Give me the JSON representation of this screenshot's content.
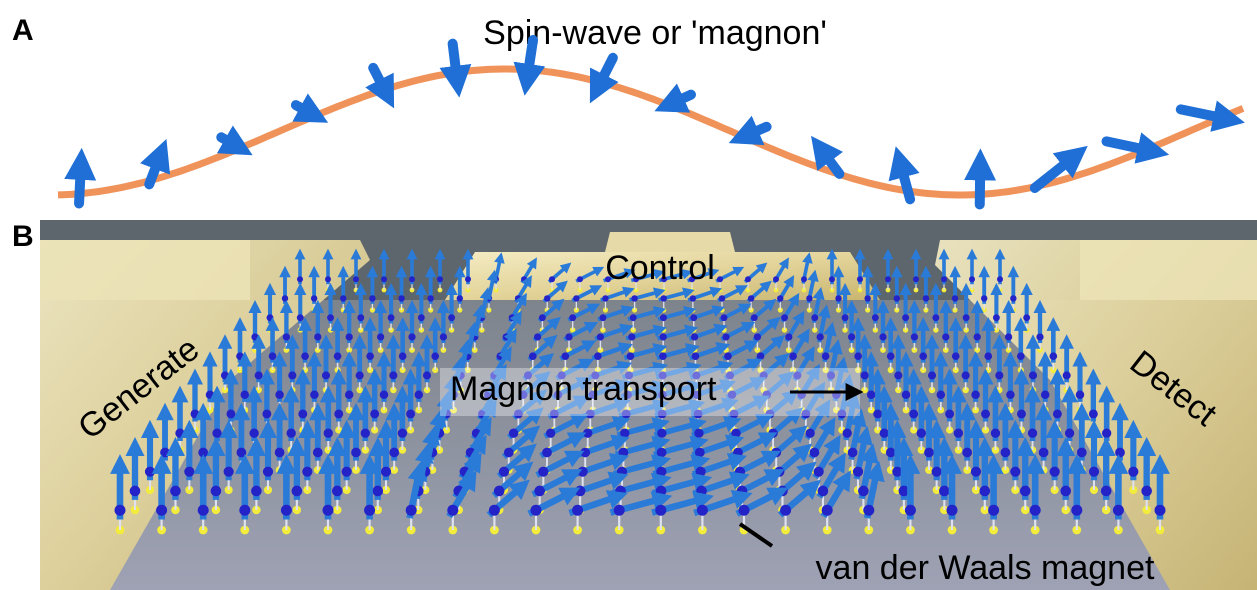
{
  "panel_a": {
    "label": "A",
    "title": "Spin-wave or 'magnon'"
  },
  "panel_b": {
    "label": "B",
    "control": "Control",
    "generate": "Generate",
    "detect": "Detect",
    "transport": "Magnon transport",
    "material": "van der Waals magnet"
  }
}
